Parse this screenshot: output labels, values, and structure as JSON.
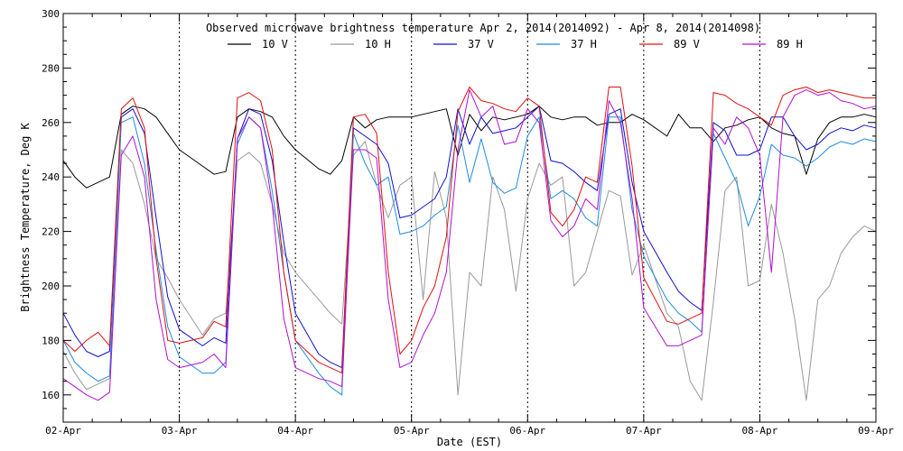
{
  "chart_data": {
    "type": "line",
    "title": "Observed microwave brightness temperature Apr  2, 2014(2014092) - Apr  8, 2014(2014098)",
    "xlabel": "Date (EST)",
    "ylabel": "Brightness Temperature, Deg K",
    "xlim": [
      0,
      7
    ],
    "ylim": [
      150,
      300
    ],
    "x_ticks": [
      "02-Apr",
      "03-Apr",
      "04-Apr",
      "05-Apr",
      "06-Apr",
      "07-Apr",
      "08-Apr",
      "09-Apr"
    ],
    "y_ticks": [
      160,
      180,
      200,
      220,
      240,
      260,
      280,
      300
    ],
    "grid": "dotted-x",
    "legend_position": "top",
    "series": [
      {
        "name": "10 V",
        "color": "#000000",
        "x": [
          0,
          0.1,
          0.2,
          0.3,
          0.4,
          0.5,
          0.6,
          0.7,
          0.8,
          0.9,
          1.0,
          1.2,
          1.3,
          1.4,
          1.5,
          1.6,
          1.7,
          1.8,
          1.9,
          2.0,
          2.2,
          2.3,
          2.4,
          2.5,
          2.6,
          2.7,
          2.8,
          2.9,
          3.0,
          3.1,
          3.2,
          3.3,
          3.4,
          3.5,
          3.6,
          3.7,
          3.8,
          3.9,
          4.0,
          4.1,
          4.2,
          4.3,
          4.4,
          4.5,
          4.6,
          4.7,
          4.8,
          4.9,
          5.0,
          5.2,
          5.3,
          5.4,
          5.5,
          5.6,
          5.7,
          5.8,
          5.9,
          6.0,
          6.1,
          6.2,
          6.3,
          6.4,
          6.5,
          6.6,
          6.7,
          6.8,
          6.9,
          7.0
        ],
        "y": [
          246,
          240,
          236,
          238,
          240,
          263,
          266,
          265,
          262,
          256,
          250,
          244,
          241,
          242,
          262,
          265,
          264,
          262,
          255,
          250,
          243,
          241,
          246,
          262,
          258,
          261,
          262,
          262,
          262,
          263,
          264,
          265,
          248,
          263,
          257,
          262,
          261,
          262,
          263,
          266,
          262,
          261,
          262,
          262,
          259,
          260,
          260,
          263,
          261,
          255,
          263,
          258,
          258,
          253,
          258,
          259,
          261,
          262,
          258,
          256,
          255,
          241,
          254,
          260,
          262,
          262,
          263,
          262
        ]
      },
      {
        "name": "10 H",
        "color": "#999999",
        "x": [
          0,
          0.1,
          0.2,
          0.3,
          0.4,
          0.5,
          0.6,
          0.7,
          0.8,
          0.9,
          1.0,
          1.2,
          1.3,
          1.4,
          1.5,
          1.6,
          1.7,
          1.8,
          1.9,
          2.0,
          2.2,
          2.3,
          2.4,
          2.5,
          2.6,
          2.7,
          2.8,
          2.9,
          3.0,
          3.1,
          3.2,
          3.3,
          3.4,
          3.5,
          3.6,
          3.7,
          3.8,
          3.9,
          4.0,
          4.1,
          4.2,
          4.3,
          4.4,
          4.5,
          4.6,
          4.7,
          4.8,
          4.9,
          5.0,
          5.2,
          5.3,
          5.4,
          5.5,
          5.6,
          5.7,
          5.8,
          5.9,
          6.0,
          6.1,
          6.2,
          6.3,
          6.4,
          6.5,
          6.6,
          6.7,
          6.8,
          6.9,
          7.0
        ],
        "y": [
          176,
          168,
          162,
          164,
          166,
          250,
          245,
          230,
          210,
          203,
          195,
          182,
          188,
          190,
          246,
          249,
          245,
          230,
          212,
          205,
          195,
          190,
          186,
          248,
          253,
          237,
          225,
          237,
          240,
          195,
          242,
          225,
          160,
          205,
          200,
          240,
          228,
          198,
          232,
          245,
          237,
          240,
          200,
          205,
          220,
          235,
          233,
          204,
          215,
          190,
          185,
          165,
          158,
          194,
          235,
          240,
          200,
          202,
          230,
          212,
          188,
          158,
          195,
          200,
          212,
          218,
          222,
          220
        ]
      },
      {
        "name": "37 V",
        "color": "#1010cc",
        "x": [
          0,
          0.1,
          0.2,
          0.3,
          0.4,
          0.5,
          0.6,
          0.7,
          0.8,
          0.9,
          1.0,
          1.2,
          1.3,
          1.4,
          1.5,
          1.6,
          1.7,
          1.8,
          1.9,
          2.0,
          2.2,
          2.3,
          2.4,
          2.5,
          2.6,
          2.7,
          2.8,
          2.9,
          3.0,
          3.1,
          3.2,
          3.3,
          3.4,
          3.5,
          3.6,
          3.7,
          3.8,
          3.9,
          4.0,
          4.1,
          4.2,
          4.3,
          4.4,
          4.5,
          4.6,
          4.7,
          4.8,
          4.9,
          5.0,
          5.2,
          5.3,
          5.4,
          5.5,
          5.6,
          5.7,
          5.8,
          5.9,
          6.0,
          6.1,
          6.2,
          6.3,
          6.4,
          6.5,
          6.6,
          6.7,
          6.8,
          6.9,
          7.0
        ],
        "y": [
          190,
          182,
          176,
          174,
          176,
          262,
          265,
          256,
          225,
          196,
          184,
          178,
          181,
          179,
          254,
          265,
          263,
          246,
          216,
          190,
          175,
          172,
          170,
          258,
          255,
          252,
          245,
          225,
          226,
          229,
          232,
          240,
          265,
          252,
          262,
          256,
          257,
          258,
          262,
          266,
          246,
          245,
          242,
          238,
          235,
          263,
          265,
          238,
          220,
          205,
          198,
          194,
          191,
          260,
          257,
          248,
          248,
          250,
          262,
          262,
          255,
          250,
          252,
          256,
          258,
          257,
          259,
          258
        ]
      },
      {
        "name": "37 H",
        "color": "#1c8ce0",
        "x": [
          0,
          0.1,
          0.2,
          0.3,
          0.4,
          0.5,
          0.6,
          0.7,
          0.8,
          0.9,
          1.0,
          1.2,
          1.3,
          1.4,
          1.5,
          1.6,
          1.7,
          1.8,
          1.9,
          2.0,
          2.2,
          2.3,
          2.4,
          2.5,
          2.6,
          2.7,
          2.8,
          2.9,
          3.0,
          3.1,
          3.2,
          3.3,
          3.4,
          3.5,
          3.6,
          3.7,
          3.8,
          3.9,
          4.0,
          4.1,
          4.2,
          4.3,
          4.4,
          4.5,
          4.6,
          4.7,
          4.8,
          4.9,
          5.0,
          5.2,
          5.3,
          5.4,
          5.5,
          5.6,
          5.7,
          5.8,
          5.9,
          6.0,
          6.1,
          6.2,
          6.3,
          6.4,
          6.5,
          6.6,
          6.7,
          6.8,
          6.9,
          7.0
        ],
        "y": [
          180,
          172,
          168,
          165,
          167,
          260,
          262,
          245,
          213,
          185,
          174,
          168,
          168,
          172,
          252,
          262,
          258,
          235,
          205,
          180,
          168,
          163,
          160,
          256,
          245,
          237,
          240,
          219,
          220,
          222,
          226,
          229,
          259,
          238,
          254,
          238,
          234,
          236,
          255,
          262,
          232,
          235,
          232,
          225,
          222,
          262,
          262,
          228,
          211,
          195,
          190,
          187,
          183,
          256,
          247,
          238,
          222,
          233,
          252,
          248,
          247,
          244,
          247,
          251,
          253,
          252,
          254,
          253
        ]
      },
      {
        "name": "89 V",
        "color": "#e01010",
        "x": [
          0,
          0.1,
          0.2,
          0.3,
          0.4,
          0.5,
          0.6,
          0.7,
          0.8,
          0.9,
          1.0,
          1.2,
          1.3,
          1.4,
          1.5,
          1.6,
          1.7,
          1.8,
          1.9,
          2.0,
          2.2,
          2.3,
          2.4,
          2.5,
          2.6,
          2.7,
          2.8,
          2.9,
          3.0,
          3.1,
          3.2,
          3.3,
          3.4,
          3.5,
          3.6,
          3.7,
          3.8,
          3.9,
          4.0,
          4.1,
          4.2,
          4.3,
          4.4,
          4.5,
          4.6,
          4.7,
          4.8,
          4.9,
          5.0,
          5.2,
          5.3,
          5.4,
          5.5,
          5.6,
          5.7,
          5.8,
          5.9,
          6.0,
          6.1,
          6.2,
          6.3,
          6.4,
          6.5,
          6.6,
          6.7,
          6.8,
          6.9,
          7.0
        ],
        "y": [
          180,
          176,
          180,
          183,
          178,
          265,
          269,
          258,
          210,
          180,
          179,
          181,
          187,
          185,
          269,
          271,
          268,
          250,
          205,
          180,
          172,
          170,
          168,
          262,
          263,
          256,
          205,
          175,
          180,
          192,
          200,
          218,
          264,
          273,
          268,
          267,
          265,
          264,
          269,
          266,
          227,
          222,
          228,
          240,
          238,
          273,
          273,
          244,
          203,
          187,
          186,
          188,
          190,
          271,
          270,
          267,
          265,
          262,
          259,
          270,
          272,
          273,
          271,
          272,
          271,
          270,
          269,
          269
        ]
      },
      {
        "name": "89 H",
        "color": "#b010d0",
        "x": [
          0,
          0.1,
          0.2,
          0.3,
          0.4,
          0.5,
          0.6,
          0.7,
          0.8,
          0.9,
          1.0,
          1.2,
          1.3,
          1.4,
          1.5,
          1.6,
          1.7,
          1.8,
          1.9,
          2.0,
          2.2,
          2.3,
          2.4,
          2.5,
          2.6,
          2.7,
          2.8,
          2.9,
          3.0,
          3.1,
          3.2,
          3.3,
          3.4,
          3.5,
          3.6,
          3.7,
          3.8,
          3.9,
          4.0,
          4.1,
          4.2,
          4.3,
          4.4,
          4.5,
          4.6,
          4.7,
          4.8,
          4.9,
          5.0,
          5.2,
          5.3,
          5.4,
          5.5,
          5.6,
          5.7,
          5.8,
          5.9,
          6.0,
          6.1,
          6.2,
          6.3,
          6.4,
          6.5,
          6.6,
          6.7,
          6.8,
          6.9,
          7.0
        ],
        "y": [
          166,
          163,
          160,
          158,
          161,
          248,
          255,
          240,
          195,
          173,
          170,
          172,
          175,
          170,
          254,
          262,
          258,
          230,
          188,
          170,
          166,
          165,
          163,
          250,
          250,
          247,
          195,
          170,
          172,
          182,
          190,
          205,
          250,
          272,
          262,
          266,
          252,
          253,
          265,
          260,
          224,
          218,
          222,
          232,
          228,
          268,
          260,
          232,
          192,
          178,
          178,
          180,
          182,
          258,
          252,
          262,
          258,
          248,
          205,
          262,
          270,
          272,
          270,
          271,
          268,
          267,
          265,
          266
        ]
      }
    ]
  }
}
